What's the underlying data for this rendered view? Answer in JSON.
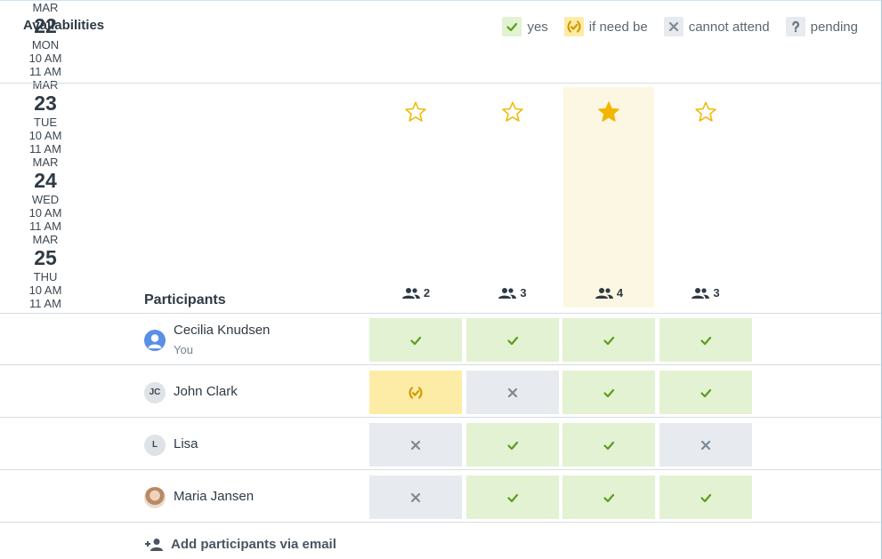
{
  "header": {
    "title": "Availabilities",
    "legend": [
      {
        "label": "yes",
        "icon": "check",
        "color": "#5a9e1d",
        "background": "#e3f2d2"
      },
      {
        "label": "if need be",
        "icon": "maybe",
        "color": "#d19a00",
        "background": "#fdeca6"
      },
      {
        "label": "cannot attend",
        "icon": "cross",
        "color": "#7d8a96",
        "background": "#e7eaee"
      },
      {
        "label": "pending",
        "icon": "pending",
        "color": "#6b7782",
        "background": "#e7eaee"
      }
    ]
  },
  "dates": [
    {
      "month": "MAR",
      "day": "22",
      "weekday": "MON",
      "start": "10 AM",
      "end": "11 AM",
      "count": 2,
      "starred": false
    },
    {
      "month": "MAR",
      "day": "23",
      "weekday": "TUE",
      "start": "10 AM",
      "end": "11 AM",
      "count": 3,
      "starred": false
    },
    {
      "month": "MAR",
      "day": "24",
      "weekday": "WED",
      "start": "10 AM",
      "end": "11 AM",
      "count": 4,
      "starred": true
    },
    {
      "month": "MAR",
      "day": "25",
      "weekday": "THU",
      "start": "10 AM",
      "end": "11 AM",
      "count": 3,
      "starred": false
    }
  ],
  "participants_label": "Participants",
  "participants": [
    {
      "name": "Cecilia Knudsen",
      "subtitle": "You",
      "avatar": "icon",
      "answers": [
        "check",
        "check",
        "check",
        "check"
      ]
    },
    {
      "name": "John Clark",
      "initials": "JC",
      "avatar": "initials",
      "answers": [
        "maybe",
        "cross",
        "check",
        "check"
      ]
    },
    {
      "name": "Lisa",
      "initials": "L",
      "avatar": "initials",
      "answers": [
        "cross",
        "check",
        "check",
        "cross"
      ]
    },
    {
      "name": "Maria Jansen",
      "avatar": "photo",
      "answers": [
        "cross",
        "check",
        "check",
        "check"
      ]
    }
  ],
  "add_participants": "Add participants via email"
}
